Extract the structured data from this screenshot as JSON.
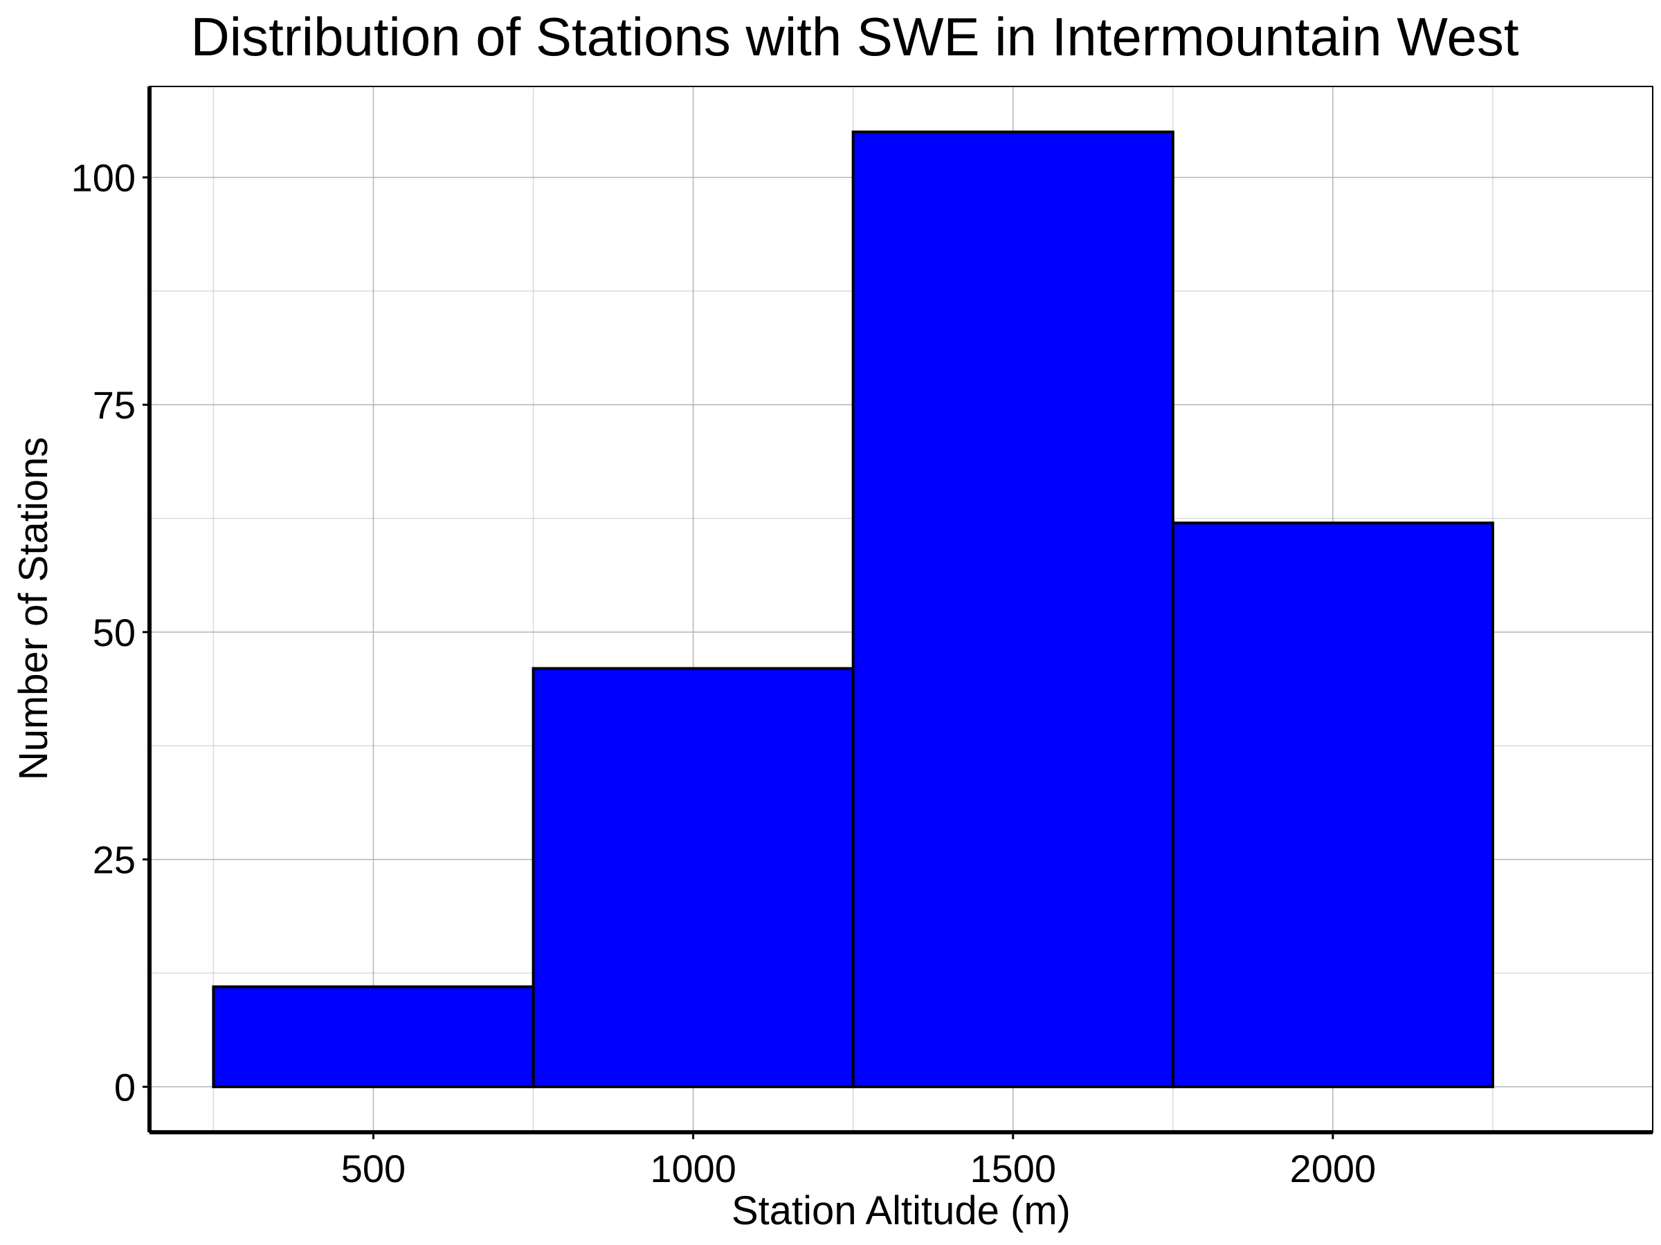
{
  "chart_data": {
    "type": "bar",
    "title": "Distribution of Stations with SWE in Intermountain West",
    "xlabel": "Station Altitude (m)",
    "ylabel": "Number of Stations",
    "bins": [
      {
        "x_start": 250,
        "x_end": 750,
        "value": 11
      },
      {
        "x_start": 750,
        "x_end": 1250,
        "value": 46
      },
      {
        "x_start": 1250,
        "x_end": 1750,
        "value": 105
      },
      {
        "x_start": 1750,
        "x_end": 2250,
        "value": 62
      }
    ],
    "xlim": [
      150,
      2500
    ],
    "ylim": [
      -5,
      110
    ],
    "xticks": [
      500,
      1000,
      1500,
      2000
    ],
    "yticks": [
      0,
      25,
      50,
      75,
      100
    ],
    "x_minor_grid": [
      250,
      750,
      1250,
      1750,
      2250
    ],
    "y_minor_grid": [
      12.5,
      37.5,
      62.5,
      87.5
    ],
    "grid": true,
    "bar_color": "#0000ff",
    "bar_edge_color": "#000000",
    "grid_color": "#b3b3b3",
    "axis_color": "#000000"
  }
}
